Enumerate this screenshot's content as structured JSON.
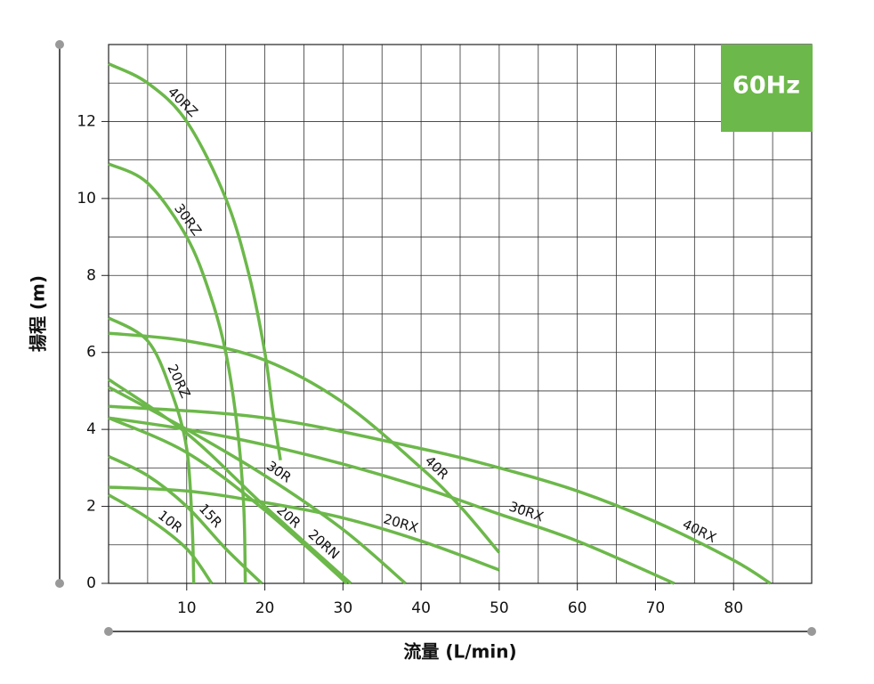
{
  "chart_data": {
    "type": "line",
    "annotation": "60Hz",
    "x_label": "流量 (L/min)",
    "y_label": "揚程 (m)",
    "xlim": [
      0,
      90
    ],
    "ylim": [
      0,
      14
    ],
    "xticks": [
      10,
      20,
      30,
      40,
      50,
      60,
      70,
      80
    ],
    "yticks": [
      0,
      2,
      4,
      6,
      8,
      10,
      12
    ],
    "grid": true,
    "series": [
      {
        "name": "40RZ",
        "color": "#6cb84a",
        "x": [
          0,
          5,
          10,
          15,
          18,
          20,
          21,
          22
        ],
        "values": [
          13.5,
          13.0,
          12.0,
          10.0,
          8.0,
          6.0,
          4.5,
          3.2
        ]
      },
      {
        "name": "30RZ",
        "color": "#6cb84a",
        "x": [
          0,
          5,
          10,
          13,
          15,
          16.5,
          17.3,
          17.5
        ],
        "values": [
          10.9,
          10.4,
          9.0,
          7.5,
          6.0,
          4.0,
          2.0,
          0
        ]
      },
      {
        "name": "20RZ",
        "color": "#6cb84a",
        "x": [
          0,
          5,
          8,
          10,
          10.7,
          10.9
        ],
        "values": [
          6.9,
          6.3,
          5.0,
          3.5,
          1.5,
          0
        ]
      },
      {
        "name": "10R",
        "color": "#6cb84a",
        "x": [
          0,
          5,
          10,
          13.2
        ],
        "values": [
          2.3,
          1.7,
          0.9,
          0
        ]
      },
      {
        "name": "15R",
        "color": "#6cb84a",
        "x": [
          0,
          5,
          10,
          15,
          19.6
        ],
        "values": [
          3.3,
          2.8,
          2.0,
          0.9,
          0
        ]
      },
      {
        "name": "20R",
        "color": "#6cb84a",
        "x": [
          0,
          10,
          20,
          30.5
        ],
        "values": [
          4.3,
          3.4,
          1.9,
          0
        ]
      },
      {
        "name": "20RN",
        "color": "#6cb84a",
        "x": [
          0,
          10,
          20,
          31
        ],
        "values": [
          5.3,
          3.9,
          2.0,
          0
        ]
      },
      {
        "name": "30R",
        "color": "#6cb84a",
        "x": [
          0,
          10,
          20,
          30,
          38
        ],
        "values": [
          5.1,
          4.0,
          2.8,
          1.4,
          0
        ]
      },
      {
        "name": "40R",
        "color": "#6cb84a",
        "x": [
          0,
          10,
          20,
          30,
          40,
          45,
          50
        ],
        "values": [
          6.5,
          6.3,
          5.8,
          4.7,
          3.0,
          2.0,
          0.8
        ]
      },
      {
        "name": "20RX",
        "color": "#6cb84a",
        "x": [
          0,
          10,
          20,
          30,
          40,
          50
        ],
        "values": [
          2.5,
          2.4,
          2.1,
          1.7,
          1.1,
          0.35
        ]
      },
      {
        "name": "30RX",
        "color": "#6cb84a",
        "x": [
          0,
          10,
          20,
          30,
          40,
          50,
          60,
          72.4
        ],
        "values": [
          4.3,
          4.0,
          3.6,
          3.1,
          2.5,
          1.8,
          1.1,
          0
        ]
      },
      {
        "name": "40RX",
        "color": "#6cb84a",
        "x": [
          0,
          20,
          40,
          50,
          60,
          70,
          80,
          84.7
        ],
        "values": [
          4.6,
          4.3,
          3.5,
          3.0,
          2.4,
          1.6,
          0.6,
          0
        ]
      }
    ]
  }
}
